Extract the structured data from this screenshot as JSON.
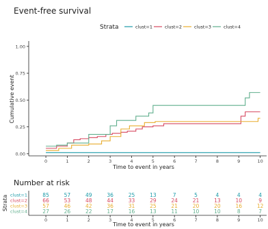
{
  "chart_data": [
    {
      "type": "line",
      "subtype": "step",
      "title": "Event-free survival",
      "xlabel": "Time to event in years",
      "ylabel": "Cumulative event",
      "xlim": [
        -0.8,
        10.3
      ],
      "ylim": [
        -0.02,
        1.05
      ],
      "x_ticks": [
        0,
        1,
        2,
        3,
        4,
        5,
        6,
        7,
        8,
        9,
        10
      ],
      "y_ticks": [
        0.0,
        0.25,
        0.5,
        0.75,
        1.0
      ],
      "y_tick_labels": [
        "0.00",
        "0.25",
        "0.50",
        "0.75",
        "1.00"
      ],
      "legend": {
        "title": "Strata",
        "placement": "top"
      },
      "grid": false,
      "series": [
        {
          "name": "clust=1",
          "color": "#1a9aa8",
          "x": [
            0,
            10
          ],
          "y": [
            0.01,
            0.01
          ]
        },
        {
          "name": "clust=2",
          "color": "#d6475f",
          "x": [
            0,
            0.5,
            1.0,
            1.3,
            1.6,
            2.0,
            2.4,
            2.8,
            3.1,
            3.5,
            3.8,
            4.2,
            4.5,
            5.0,
            5.5,
            6.0,
            6.5,
            7.0,
            7.5,
            8.0,
            8.5,
            9.1,
            9.3,
            9.9,
            10.0
          ],
          "y": [
            0.05,
            0.07,
            0.1,
            0.13,
            0.14,
            0.15,
            0.16,
            0.18,
            0.19,
            0.2,
            0.21,
            0.23,
            0.25,
            0.26,
            0.28,
            0.28,
            0.28,
            0.28,
            0.28,
            0.28,
            0.28,
            0.35,
            0.39,
            0.39,
            0.39
          ]
        },
        {
          "name": "clust=3",
          "color": "#e8ac2c",
          "x": [
            0,
            0.6,
            1.2,
            2.0,
            2.6,
            3.0,
            3.5,
            3.9,
            4.6,
            5.1,
            5.8,
            9.0,
            9.9,
            10.0
          ],
          "y": [
            0.03,
            0.05,
            0.08,
            0.09,
            0.12,
            0.16,
            0.23,
            0.26,
            0.29,
            0.3,
            0.3,
            0.3,
            0.33,
            0.33
          ]
        },
        {
          "name": "clust=4",
          "color": "#5fae8c",
          "x": [
            0,
            0.5,
            1.0,
            2.0,
            3.0,
            3.3,
            4.2,
            4.8,
            5.0,
            5.5,
            9.3,
            9.5,
            10.0
          ],
          "y": [
            0.07,
            0.08,
            0.1,
            0.18,
            0.26,
            0.31,
            0.35,
            0.38,
            0.45,
            0.45,
            0.52,
            0.57,
            0.57
          ]
        }
      ]
    },
    {
      "type": "table",
      "title": "Number at risk",
      "xlabel": "Time to event in years",
      "ylabel": "Strata",
      "x_ticks": [
        0,
        1,
        2,
        3,
        4,
        5,
        6,
        7,
        8,
        9,
        10
      ],
      "rows": [
        {
          "name": "clust=1",
          "color": "#1a9aa8",
          "values": [
            85,
            57,
            49,
            36,
            25,
            13,
            7,
            5,
            4,
            4,
            4
          ]
        },
        {
          "name": "clust=2",
          "color": "#d6475f",
          "values": [
            66,
            53,
            48,
            44,
            33,
            29,
            24,
            21,
            13,
            10,
            9
          ]
        },
        {
          "name": "clust=3",
          "color": "#e8ac2c",
          "values": [
            57,
            46,
            42,
            36,
            31,
            25,
            21,
            20,
            20,
            16,
            12
          ]
        },
        {
          "name": "clust=4",
          "color": "#5fae8c",
          "values": [
            27,
            26,
            22,
            17,
            16,
            13,
            11,
            10,
            10,
            8,
            7
          ]
        }
      ]
    }
  ]
}
